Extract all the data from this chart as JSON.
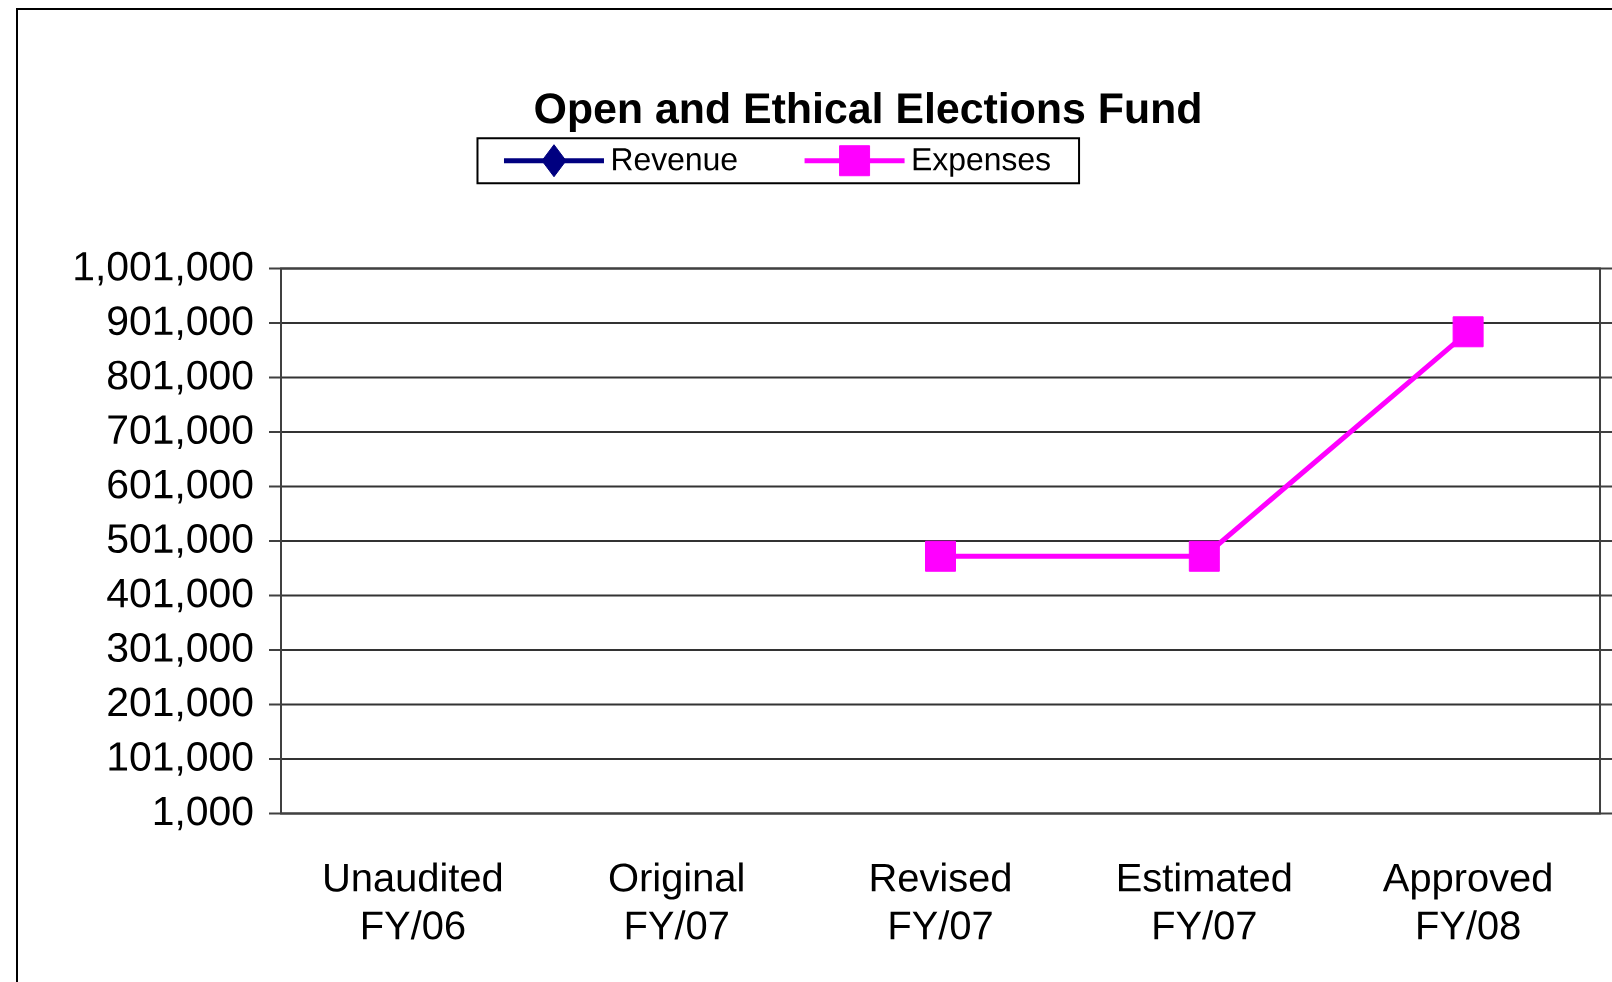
{
  "chart_data": {
    "type": "line",
    "title": "Open and Ethical Elections Fund",
    "categories": [
      "Unaudited FY/06",
      "Original FY/07",
      "Revised FY/07",
      "Estimated FY/07",
      "Approved FY/08"
    ],
    "series": [
      {
        "name": "Revenue",
        "color": "#000080",
        "marker": "diamond",
        "values": [
          null,
          null,
          null,
          null,
          null
        ]
      },
      {
        "name": "Expenses",
        "color": "#ff00ff",
        "marker": "square",
        "values": [
          null,
          null,
          473000,
          473000,
          885000
        ]
      }
    ],
    "ylim": [
      1000,
      1001000
    ],
    "yticks": [
      {
        "value": 1000,
        "label": "1,000"
      },
      {
        "value": 101000,
        "label": "101,000"
      },
      {
        "value": 201000,
        "label": "201,000"
      },
      {
        "value": 301000,
        "label": "301,000"
      },
      {
        "value": 401000,
        "label": "401,000"
      },
      {
        "value": 501000,
        "label": "501,000"
      },
      {
        "value": 601000,
        "label": "601,000"
      },
      {
        "value": 701000,
        "label": "701,000"
      },
      {
        "value": 801000,
        "label": "801,000"
      },
      {
        "value": 901000,
        "label": "901,000"
      },
      {
        "value": 1001000,
        "label": "1,001,000"
      }
    ],
    "grid": "y",
    "legend": "top"
  }
}
